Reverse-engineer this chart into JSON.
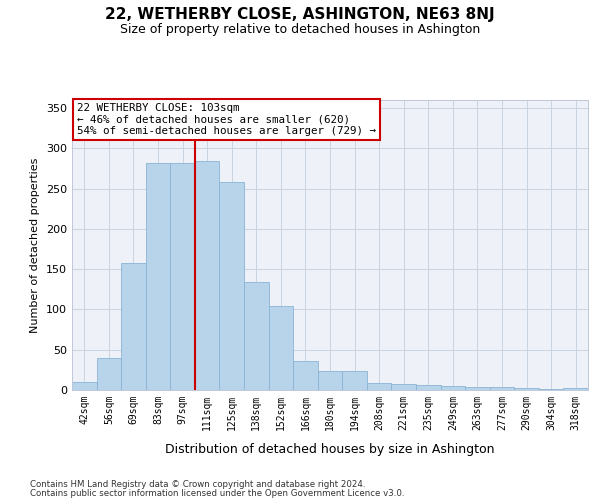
{
  "title": "22, WETHERBY CLOSE, ASHINGTON, NE63 8NJ",
  "subtitle": "Size of property relative to detached houses in Ashington",
  "xlabel": "Distribution of detached houses by size in Ashington",
  "ylabel": "Number of detached properties",
  "categories": [
    "42sqm",
    "56sqm",
    "69sqm",
    "83sqm",
    "97sqm",
    "111sqm",
    "125sqm",
    "138sqm",
    "152sqm",
    "166sqm",
    "180sqm",
    "194sqm",
    "208sqm",
    "221sqm",
    "235sqm",
    "249sqm",
    "263sqm",
    "277sqm",
    "290sqm",
    "304sqm",
    "318sqm"
  ],
  "values": [
    10,
    40,
    158,
    282,
    282,
    284,
    258,
    134,
    104,
    36,
    23,
    24,
    9,
    8,
    6,
    5,
    4,
    4,
    3,
    1,
    2
  ],
  "bar_color": "#b8d4ea",
  "bar_edgecolor": "#8ab4d4",
  "property_line_x": 4.5,
  "property_label": "22 WETHERBY CLOSE: 103sqm",
  "annotation_line1": "← 46% of detached houses are smaller (620)",
  "annotation_line2": "54% of semi-detached houses are larger (729) →",
  "annotation_box_color": "#ffffff",
  "annotation_box_edgecolor": "#cc0000",
  "vline_color": "#cc0000",
  "plot_background": "#eef2f8",
  "ylim": [
    0,
    360
  ],
  "yticks": [
    0,
    50,
    100,
    150,
    200,
    250,
    300,
    350
  ],
  "footer1": "Contains HM Land Registry data © Crown copyright and database right 2024.",
  "footer2": "Contains public sector information licensed under the Open Government Licence v3.0."
}
